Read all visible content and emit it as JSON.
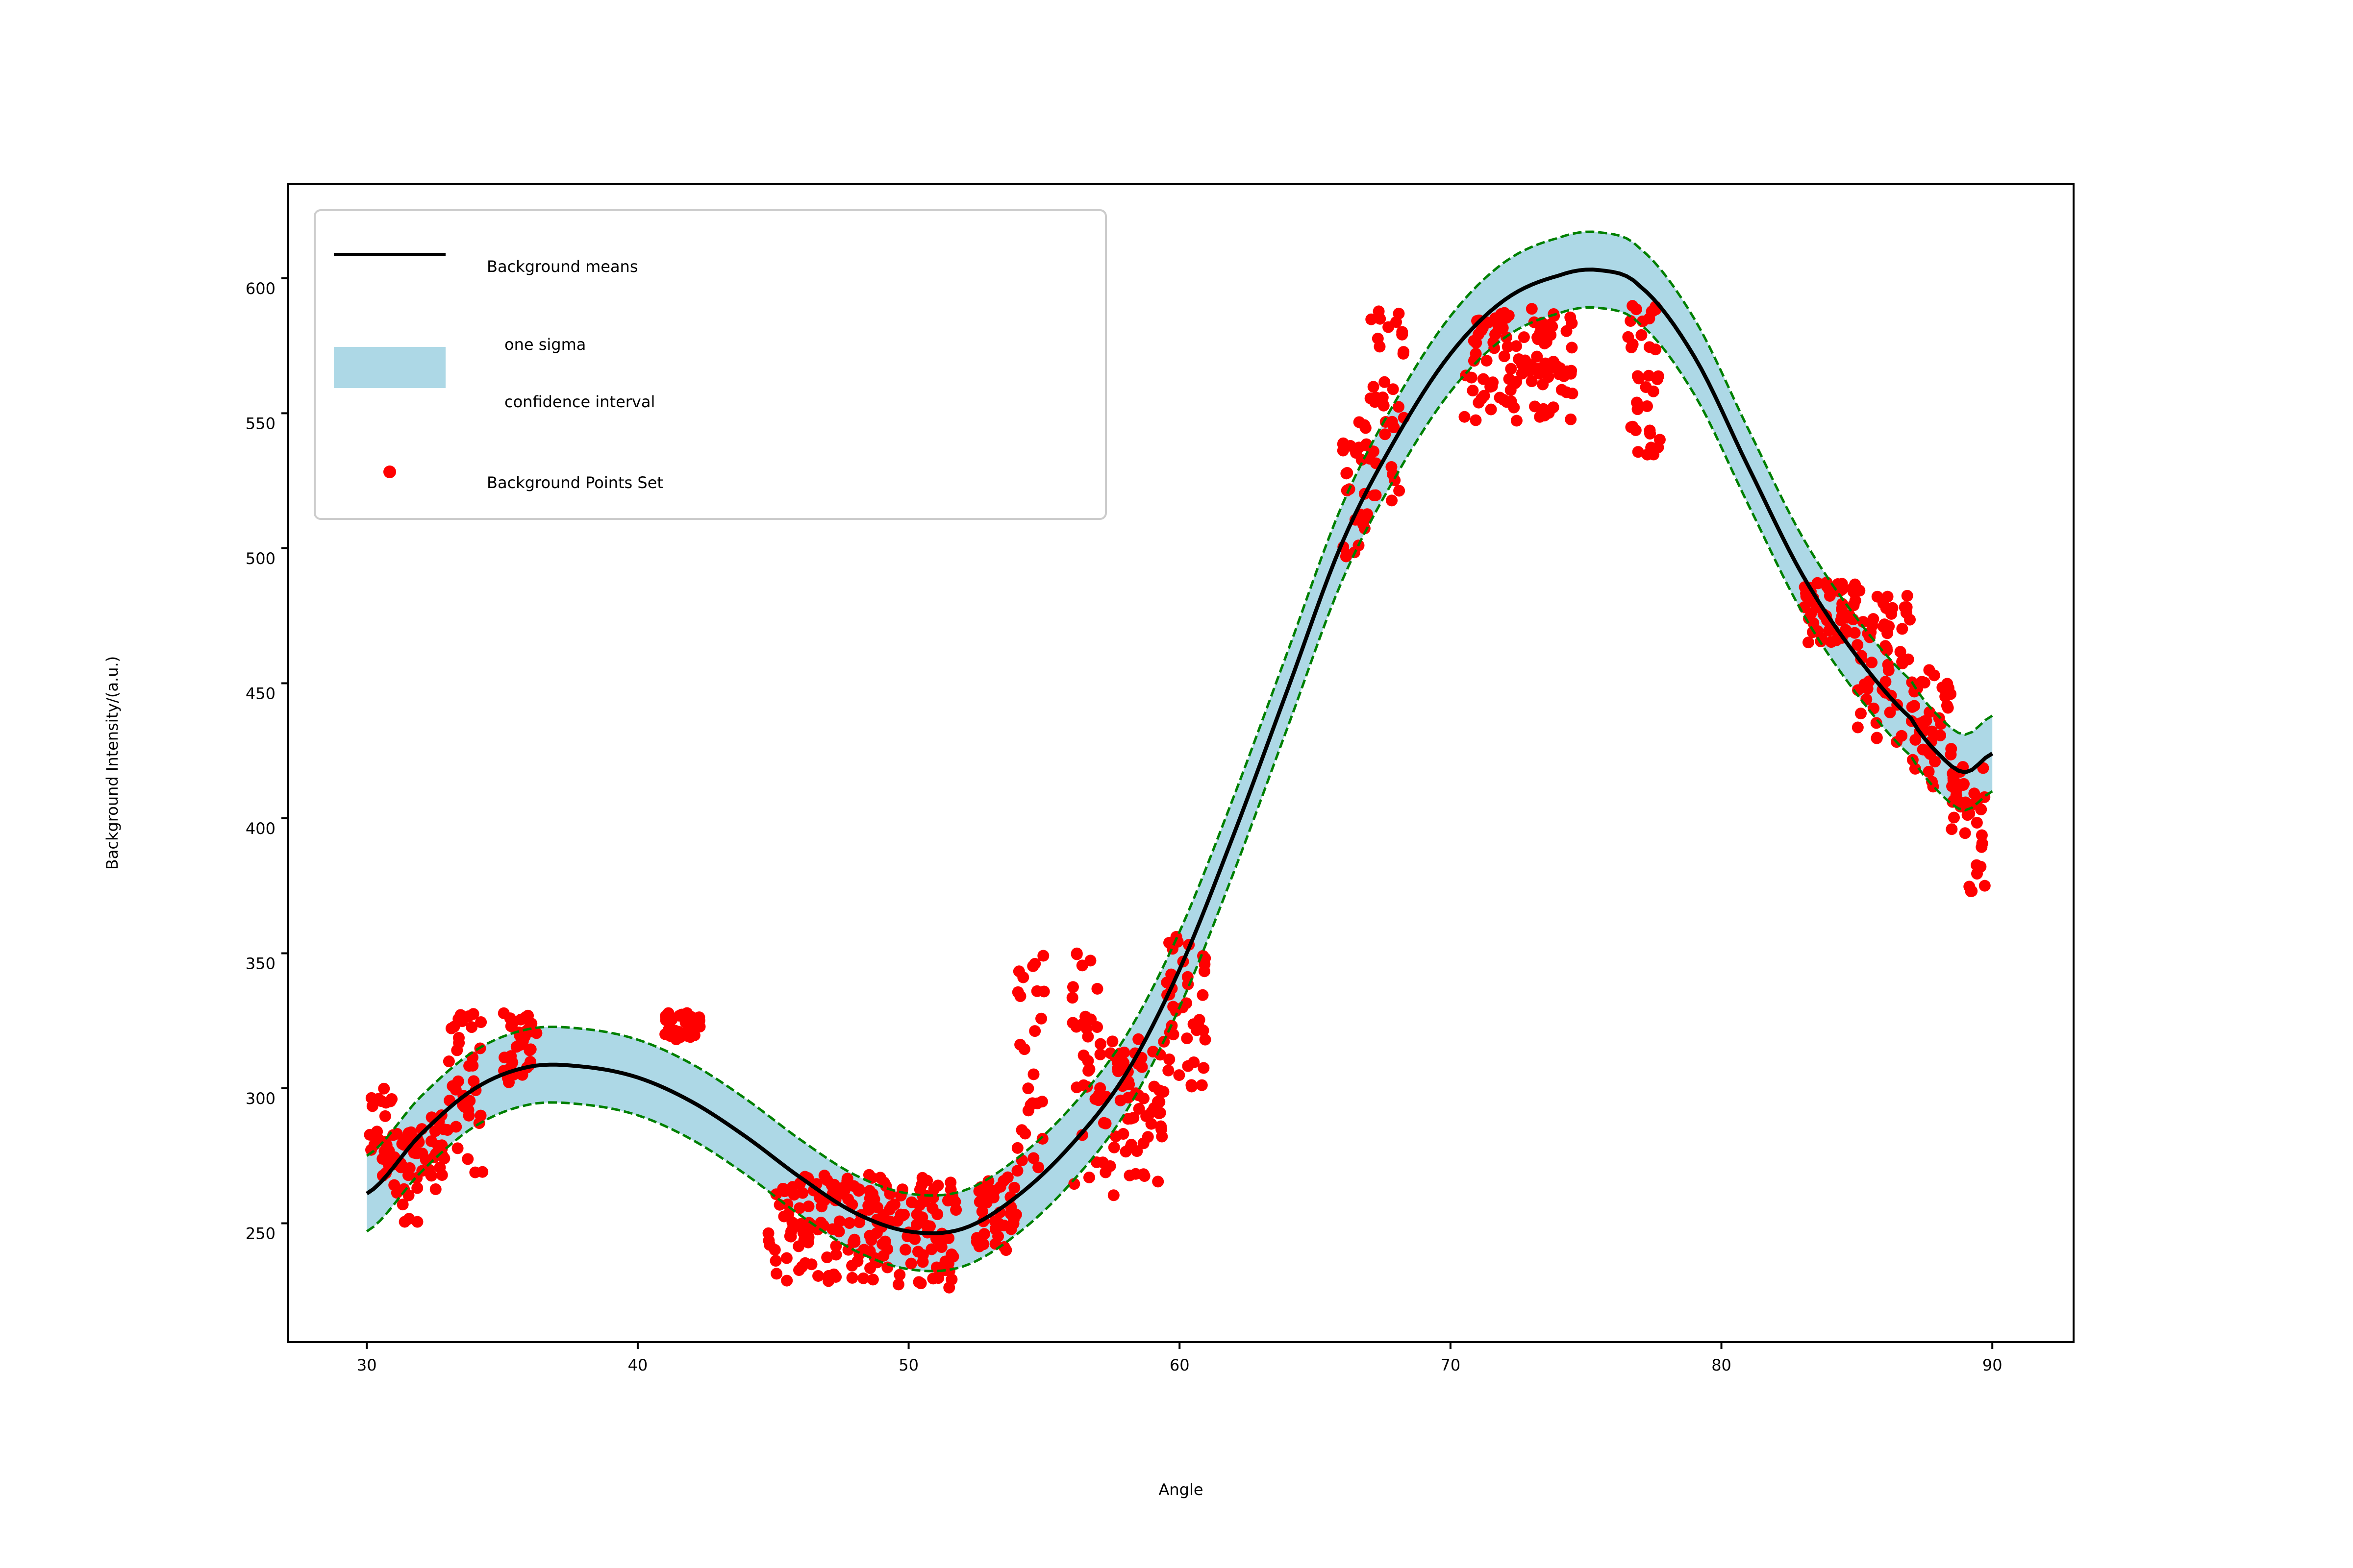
{
  "chart_data": {
    "type": "line",
    "title": "",
    "xlabel": "Angle",
    "ylabel": "Background Intensity/(a.u.)",
    "xlim": [
      27.1,
      93.0
    ],
    "ylim": [
      206.0,
      635.0
    ],
    "x_ticks": [
      30,
      40,
      50,
      60,
      70,
      80,
      90
    ],
    "y_ticks": [
      250,
      300,
      350,
      400,
      450,
      500,
      550,
      600
    ],
    "grid": false,
    "legend_position": "upper-left",
    "legend": {
      "mean_label": "Background means",
      "band_label_line1": "one sigma",
      "band_label_line2": "confidence interval",
      "points_label": "Background Points Set"
    },
    "colors": {
      "mean_line": "#000000",
      "band_fill": "#add8e6",
      "band_edge": "#008000",
      "points": "#ff0000"
    },
    "sigma": 14,
    "mean_curve": {
      "x": [
        30,
        32,
        34,
        36,
        38,
        40,
        42,
        44,
        46,
        48,
        50,
        52,
        54,
        56,
        58,
        60,
        62,
        64,
        66,
        68,
        70,
        72,
        74,
        75.5,
        77,
        79,
        81,
        83,
        85,
        87,
        88,
        89,
        90
      ],
      "y": [
        261,
        283,
        300,
        308,
        308,
        304,
        295,
        282,
        267,
        254,
        247,
        248,
        260,
        279,
        305,
        344,
        394,
        448,
        502,
        541,
        572,
        592,
        601,
        603,
        597,
        571,
        530,
        490,
        460,
        437,
        424,
        417,
        424
      ]
    },
    "points_clusters": [
      {
        "x": [
          30.0,
          31.0
        ],
        "y": [
          262,
          300
        ]
      },
      {
        "x": [
          31.0,
          32.3
        ],
        "y": [
          250,
          285
        ]
      },
      {
        "x": [
          32.3,
          33.0
        ],
        "y": [
          262,
          292
        ]
      },
      {
        "x": [
          33.0,
          34.3
        ],
        "y": [
          265,
          328
        ]
      },
      {
        "x": [
          35.0,
          36.3
        ],
        "y": [
          300,
          328
        ]
      },
      {
        "x": [
          41.0,
          42.3
        ],
        "y": [
          318,
          328
        ]
      },
      {
        "x": [
          44.8,
          49.0
        ],
        "y": [
          228,
          268
        ]
      },
      {
        "x": [
          49.0,
          51.8
        ],
        "y": [
          225,
          268
        ]
      },
      {
        "x": [
          52.5,
          54.0
        ],
        "y": [
          240,
          268
        ]
      },
      {
        "x": [
          54.0,
          55.0
        ],
        "y": [
          262,
          352
        ]
      },
      {
        "x": [
          56.0,
          57.0
        ],
        "y": [
          258,
          352
        ]
      },
      {
        "x": [
          57.0,
          59.5
        ],
        "y": [
          260,
          320
        ]
      },
      {
        "x": [
          59.5,
          61.0
        ],
        "y": [
          300,
          358
        ]
      },
      {
        "x": [
          66.0,
          67.0
        ],
        "y": [
          495,
          548
        ]
      },
      {
        "x": [
          67.0,
          68.3
        ],
        "y": [
          515,
          588
        ]
      },
      {
        "x": [
          70.5,
          74.5
        ],
        "y": [
          547,
          590
        ]
      },
      {
        "x": [
          76.5,
          77.8
        ],
        "y": [
          533,
          590
        ]
      },
      {
        "x": [
          83.0,
          85.0
        ],
        "y": [
          465,
          488
        ]
      },
      {
        "x": [
          85.0,
          87.0
        ],
        "y": [
          425,
          485
        ]
      },
      {
        "x": [
          87.0,
          88.5
        ],
        "y": [
          410,
          455
        ]
      },
      {
        "x": [
          88.5,
          89.0
        ],
        "y": [
          390,
          420
        ]
      },
      {
        "x": [
          89.0,
          89.8
        ],
        "y": [
          364,
          425
        ]
      }
    ]
  }
}
